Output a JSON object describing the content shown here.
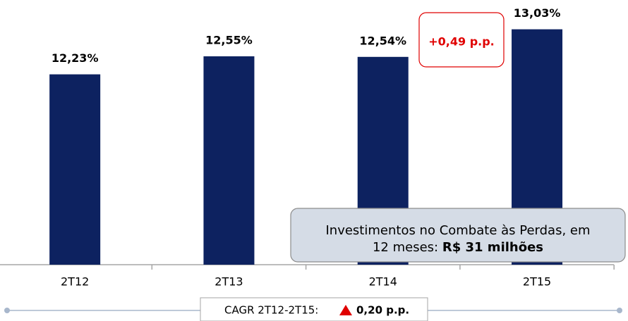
{
  "chart_data": {
    "type": "bar",
    "categories": [
      "2T12",
      "2T13",
      "2T14",
      "2T15"
    ],
    "values": [
      12.23,
      12.55,
      12.54,
      13.03
    ],
    "value_labels": [
      "12,23%",
      "12,55%",
      "12,54%",
      "13,03%"
    ],
    "color": "#0d2260",
    "ylim": [
      8.85,
      13.4
    ],
    "annotations": {
      "difference": "+0,49 p.p.",
      "callout_lines": [
        "Investimentos no Combate às Perdas, em",
        "12 meses:"
      ],
      "callout_value": "R$ 31 milhões",
      "cagr_label": "CAGR 2T12-2T15:",
      "cagr_value": "0,20 p.p."
    }
  }
}
